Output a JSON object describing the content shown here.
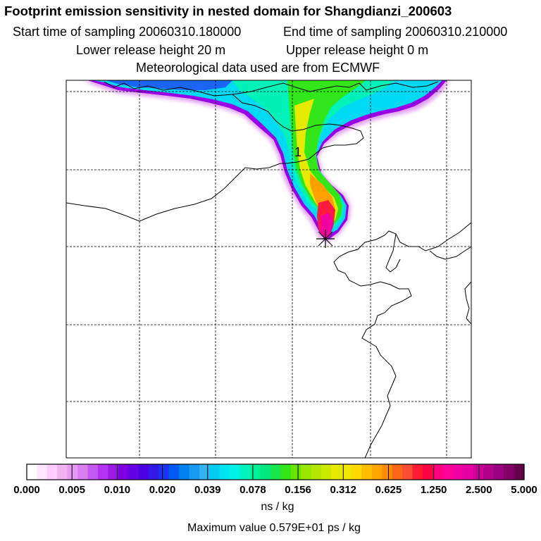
{
  "header": {
    "title": "Footprint emission sensitivity in nested domain for Shangdianzi_200603",
    "start_time": "Start time of sampling 20060310.180000",
    "end_time": "End time of sampling 20060310.210000",
    "lower_height": "Lower release height   20 m",
    "upper_height": "Upper release height    0 m",
    "met_source": "Meteorological data used are from ECMWF"
  },
  "map": {
    "contour_label": "1"
  },
  "colorbar": {
    "ticks": [
      "0.000",
      "0.005",
      "0.010",
      "0.020",
      "0.039",
      "0.078",
      "0.156",
      "0.312",
      "0.625",
      "1.250",
      "2.500",
      "5.000"
    ],
    "colors": [
      "#ffffff",
      "#ffe6ff",
      "#ffccff",
      "#f2b3f2",
      "#e699f2",
      "#d97ff2",
      "#c659f2",
      "#b333f2",
      "#9c1ae6",
      "#8000e6",
      "#6600e6",
      "#4d00e6",
      "#3319e6",
      "#1a33f2",
      "#0059f2",
      "#0080f2",
      "#1a99f2",
      "#33b3f2",
      "#00ccf2",
      "#00e6f2",
      "#00f2e6",
      "#00f2bf",
      "#00f299",
      "#00e680",
      "#1ae64d",
      "#33e61a",
      "#66e600",
      "#99e600",
      "#b3e600",
      "#ccea00",
      "#e6ea00",
      "#f2e600",
      "#ffd900",
      "#ffbf00",
      "#ffa600",
      "#ff8c00",
      "#ff6619",
      "#ff4d33",
      "#ff1a33",
      "#ff0040",
      "#ff0080",
      "#ff0099",
      "#f200a6",
      "#e600a6",
      "#cc0099",
      "#b3008c",
      "#990080",
      "#800066",
      "#66004d"
    ],
    "units": "ns / kg",
    "max_value": "Maximum value  0.579E+01 ps / kg"
  },
  "palette": {
    "frame": "#000000",
    "grid": "#000000",
    "coast": "#000000"
  }
}
